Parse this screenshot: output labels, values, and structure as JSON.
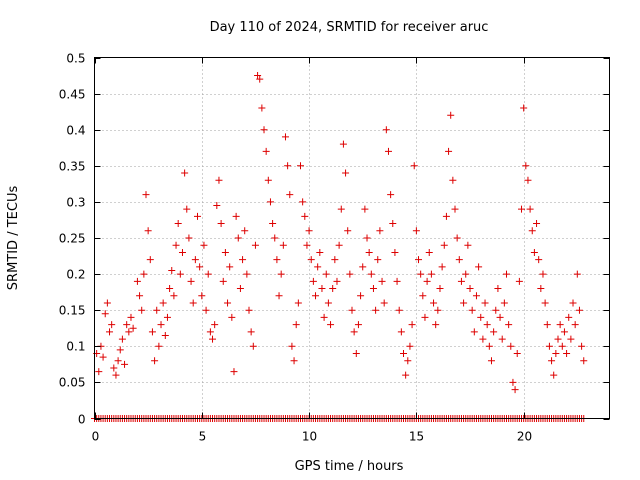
{
  "chart_data": {
    "type": "scatter",
    "title": "Day 110 of 2024, SRMTID for receiver aruc",
    "xlabel": "GPS time / hours",
    "ylabel": "SRMTID / TECUs",
    "xlim": [
      0,
      24
    ],
    "ylim": [
      0,
      0.5
    ],
    "xticks": [
      0,
      5,
      10,
      15,
      20
    ],
    "xtick_labels": [
      "0",
      "5",
      "10",
      "15",
      "20"
    ],
    "yticks": [
      0,
      0.05,
      0.1,
      0.15,
      0.2,
      0.25,
      0.3,
      0.35,
      0.4,
      0.45,
      0.5
    ],
    "ytick_labels": [
      "0",
      "0.05",
      "0.1",
      "0.15",
      "0.2",
      "0.25",
      "0.3",
      "0.35",
      "0.4",
      "0.45",
      "0.5"
    ],
    "grid": true,
    "marker": "+",
    "color": "#dd0000",
    "series": [
      {
        "name": "SRMTID",
        "points": [
          [
            0.1,
            0.09
          ],
          [
            0.2,
            0.065
          ],
          [
            0.3,
            0.1
          ],
          [
            0.4,
            0.085
          ],
          [
            0.5,
            0.145
          ],
          [
            0.6,
            0.16
          ],
          [
            0.7,
            0.12
          ],
          [
            0.8,
            0.13
          ],
          [
            0.9,
            0.07
          ],
          [
            1.0,
            0.06
          ],
          [
            1.1,
            0.08
          ],
          [
            1.2,
            0.095
          ],
          [
            1.3,
            0.11
          ],
          [
            1.4,
            0.075
          ],
          [
            1.5,
            0.13
          ],
          [
            1.6,
            0.12
          ],
          [
            1.7,
            0.14
          ],
          [
            1.8,
            0.125
          ],
          [
            2.0,
            0.19
          ],
          [
            2.1,
            0.17
          ],
          [
            2.2,
            0.15
          ],
          [
            2.3,
            0.2
          ],
          [
            2.4,
            0.31
          ],
          [
            2.5,
            0.26
          ],
          [
            2.6,
            0.22
          ],
          [
            2.7,
            0.12
          ],
          [
            2.8,
            0.08
          ],
          [
            2.9,
            0.15
          ],
          [
            3.0,
            0.1
          ],
          [
            3.1,
            0.13
          ],
          [
            3.2,
            0.16
          ],
          [
            3.3,
            0.115
          ],
          [
            3.4,
            0.14
          ],
          [
            3.5,
            0.18
          ],
          [
            3.6,
            0.205
          ],
          [
            3.7,
            0.17
          ],
          [
            3.8,
            0.24
          ],
          [
            3.9,
            0.27
          ],
          [
            4.0,
            0.2
          ],
          [
            4.1,
            0.23
          ],
          [
            4.2,
            0.34
          ],
          [
            4.3,
            0.29
          ],
          [
            4.4,
            0.25
          ],
          [
            4.5,
            0.19
          ],
          [
            4.6,
            0.16
          ],
          [
            4.7,
            0.22
          ],
          [
            4.8,
            0.28
          ],
          [
            4.9,
            0.21
          ],
          [
            5.0,
            0.17
          ],
          [
            5.1,
            0.24
          ],
          [
            5.2,
            0.15
          ],
          [
            5.3,
            0.2
          ],
          [
            5.4,
            0.12
          ],
          [
            5.5,
            0.11
          ],
          [
            5.6,
            0.13
          ],
          [
            5.7,
            0.295
          ],
          [
            5.8,
            0.33
          ],
          [
            5.9,
            0.27
          ],
          [
            6.0,
            0.19
          ],
          [
            6.1,
            0.23
          ],
          [
            6.2,
            0.16
          ],
          [
            6.3,
            0.21
          ],
          [
            6.4,
            0.14
          ],
          [
            6.5,
            0.065
          ],
          [
            6.6,
            0.28
          ],
          [
            6.7,
            0.25
          ],
          [
            6.8,
            0.18
          ],
          [
            6.9,
            0.22
          ],
          [
            7.0,
            0.26
          ],
          [
            7.1,
            0.2
          ],
          [
            7.2,
            0.15
          ],
          [
            7.3,
            0.12
          ],
          [
            7.4,
            0.1
          ],
          [
            7.5,
            0.24
          ],
          [
            7.6,
            0.475
          ],
          [
            7.7,
            0.47
          ],
          [
            7.8,
            0.43
          ],
          [
            7.9,
            0.4
          ],
          [
            8.0,
            0.37
          ],
          [
            8.1,
            0.33
          ],
          [
            8.2,
            0.3
          ],
          [
            8.3,
            0.27
          ],
          [
            8.4,
            0.25
          ],
          [
            8.5,
            0.22
          ],
          [
            8.6,
            0.17
          ],
          [
            8.7,
            0.2
          ],
          [
            8.8,
            0.24
          ],
          [
            8.9,
            0.39
          ],
          [
            9.0,
            0.35
          ],
          [
            9.1,
            0.31
          ],
          [
            9.2,
            0.1
          ],
          [
            9.3,
            0.08
          ],
          [
            9.4,
            0.13
          ],
          [
            9.5,
            0.16
          ],
          [
            9.6,
            0.35
          ],
          [
            9.7,
            0.3
          ],
          [
            9.8,
            0.28
          ],
          [
            9.9,
            0.24
          ],
          [
            10.0,
            0.26
          ],
          [
            10.1,
            0.22
          ],
          [
            10.2,
            0.19
          ],
          [
            10.3,
            0.17
          ],
          [
            10.4,
            0.21
          ],
          [
            10.5,
            0.23
          ],
          [
            10.6,
            0.18
          ],
          [
            10.7,
            0.14
          ],
          [
            10.8,
            0.2
          ],
          [
            10.9,
            0.16
          ],
          [
            11.0,
            0.13
          ],
          [
            11.1,
            0.18
          ],
          [
            11.2,
            0.22
          ],
          [
            11.3,
            0.19
          ],
          [
            11.4,
            0.24
          ],
          [
            11.5,
            0.29
          ],
          [
            11.6,
            0.38
          ],
          [
            11.7,
            0.34
          ],
          [
            11.8,
            0.26
          ],
          [
            11.9,
            0.2
          ],
          [
            12.0,
            0.15
          ],
          [
            12.1,
            0.12
          ],
          [
            12.2,
            0.09
          ],
          [
            12.3,
            0.13
          ],
          [
            12.4,
            0.17
          ],
          [
            12.5,
            0.21
          ],
          [
            12.6,
            0.29
          ],
          [
            12.7,
            0.25
          ],
          [
            12.8,
            0.23
          ],
          [
            12.9,
            0.2
          ],
          [
            13.0,
            0.18
          ],
          [
            13.1,
            0.15
          ],
          [
            13.2,
            0.22
          ],
          [
            13.3,
            0.26
          ],
          [
            13.4,
            0.19
          ],
          [
            13.5,
            0.16
          ],
          [
            13.6,
            0.4
          ],
          [
            13.7,
            0.37
          ],
          [
            13.8,
            0.31
          ],
          [
            13.9,
            0.27
          ],
          [
            14.0,
            0.23
          ],
          [
            14.1,
            0.19
          ],
          [
            14.2,
            0.15
          ],
          [
            14.3,
            0.12
          ],
          [
            14.4,
            0.09
          ],
          [
            14.5,
            0.06
          ],
          [
            14.6,
            0.08
          ],
          [
            14.7,
            0.1
          ],
          [
            14.8,
            0.13
          ],
          [
            14.9,
            0.35
          ],
          [
            15.0,
            0.26
          ],
          [
            15.1,
            0.22
          ],
          [
            15.2,
            0.2
          ],
          [
            15.3,
            0.17
          ],
          [
            15.4,
            0.14
          ],
          [
            15.5,
            0.19
          ],
          [
            15.6,
            0.23
          ],
          [
            15.7,
            0.2
          ],
          [
            15.8,
            0.16
          ],
          [
            15.9,
            0.13
          ],
          [
            16.0,
            0.15
          ],
          [
            16.1,
            0.18
          ],
          [
            16.2,
            0.21
          ],
          [
            16.3,
            0.24
          ],
          [
            16.4,
            0.28
          ],
          [
            16.5,
            0.37
          ],
          [
            16.6,
            0.42
          ],
          [
            16.7,
            0.33
          ],
          [
            16.8,
            0.29
          ],
          [
            16.9,
            0.25
          ],
          [
            17.0,
            0.22
          ],
          [
            17.1,
            0.19
          ],
          [
            17.2,
            0.16
          ],
          [
            17.3,
            0.2
          ],
          [
            17.4,
            0.24
          ],
          [
            17.5,
            0.18
          ],
          [
            17.6,
            0.15
          ],
          [
            17.7,
            0.12
          ],
          [
            17.8,
            0.17
          ],
          [
            17.9,
            0.21
          ],
          [
            18.0,
            0.14
          ],
          [
            18.1,
            0.11
          ],
          [
            18.2,
            0.16
          ],
          [
            18.3,
            0.13
          ],
          [
            18.4,
            0.1
          ],
          [
            18.5,
            0.08
          ],
          [
            18.6,
            0.12
          ],
          [
            18.7,
            0.15
          ],
          [
            18.8,
            0.18
          ],
          [
            18.9,
            0.14
          ],
          [
            19.0,
            0.11
          ],
          [
            19.1,
            0.16
          ],
          [
            19.2,
            0.2
          ],
          [
            19.3,
            0.13
          ],
          [
            19.4,
            0.1
          ],
          [
            19.5,
            0.05
          ],
          [
            19.6,
            0.04
          ],
          [
            19.7,
            0.09
          ],
          [
            19.8,
            0.19
          ],
          [
            19.9,
            0.29
          ],
          [
            20.0,
            0.43
          ],
          [
            20.1,
            0.35
          ],
          [
            20.2,
            0.33
          ],
          [
            20.3,
            0.29
          ],
          [
            20.4,
            0.26
          ],
          [
            20.5,
            0.23
          ],
          [
            20.6,
            0.27
          ],
          [
            20.7,
            0.22
          ],
          [
            20.8,
            0.18
          ],
          [
            20.9,
            0.2
          ],
          [
            21.0,
            0.16
          ],
          [
            21.1,
            0.13
          ],
          [
            21.2,
            0.1
          ],
          [
            21.3,
            0.08
          ],
          [
            21.4,
            0.06
          ],
          [
            21.5,
            0.09
          ],
          [
            21.6,
            0.11
          ],
          [
            21.7,
            0.13
          ],
          [
            21.8,
            0.1
          ],
          [
            21.9,
            0.12
          ],
          [
            22.0,
            0.09
          ],
          [
            22.1,
            0.14
          ],
          [
            22.2,
            0.11
          ],
          [
            22.3,
            0.16
          ],
          [
            22.4,
            0.13
          ],
          [
            22.5,
            0.2
          ],
          [
            22.6,
            0.15
          ],
          [
            22.7,
            0.1
          ],
          [
            22.8,
            0.08
          ]
        ]
      },
      {
        "name": "zero-baseline",
        "x_range": [
          0.0,
          22.8
        ],
        "step": 0.1,
        "value": 0
      }
    ]
  }
}
